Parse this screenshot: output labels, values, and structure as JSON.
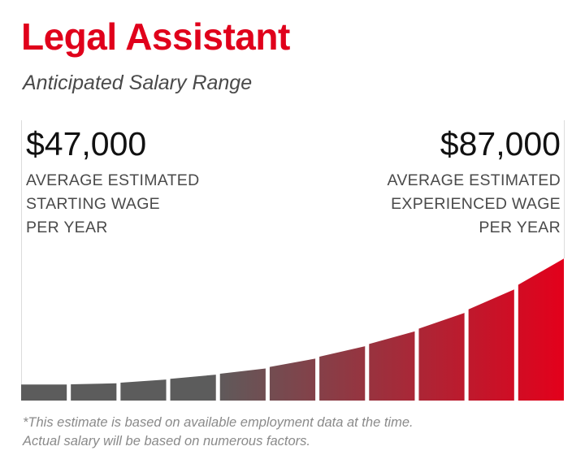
{
  "chart_data": {
    "type": "bar",
    "title": "Legal Assistant",
    "subtitle": "Anticipated Salary Range",
    "start": {
      "amount": "$47,000",
      "lines": [
        "AVERAGE ESTIMATED",
        "STARTING WAGE",
        "PER YEAR"
      ]
    },
    "end": {
      "amount": "$87,000",
      "lines": [
        "AVERAGE ESTIMATED",
        "EXPERIENCED WAGE",
        "PER YEAR"
      ]
    },
    "values": [
      0.13,
      0.14,
      0.17,
      0.21,
      0.26,
      0.34,
      0.44,
      0.56,
      0.71,
      0.9,
      1.15
    ],
    "colors": {
      "start": "#5c5c5c",
      "end": "#e3001b",
      "title": "#e0001b"
    },
    "footnote": [
      "*This estimate is based on available employment data at the time.",
      "Actual salary will be based on numerous factors."
    ]
  }
}
